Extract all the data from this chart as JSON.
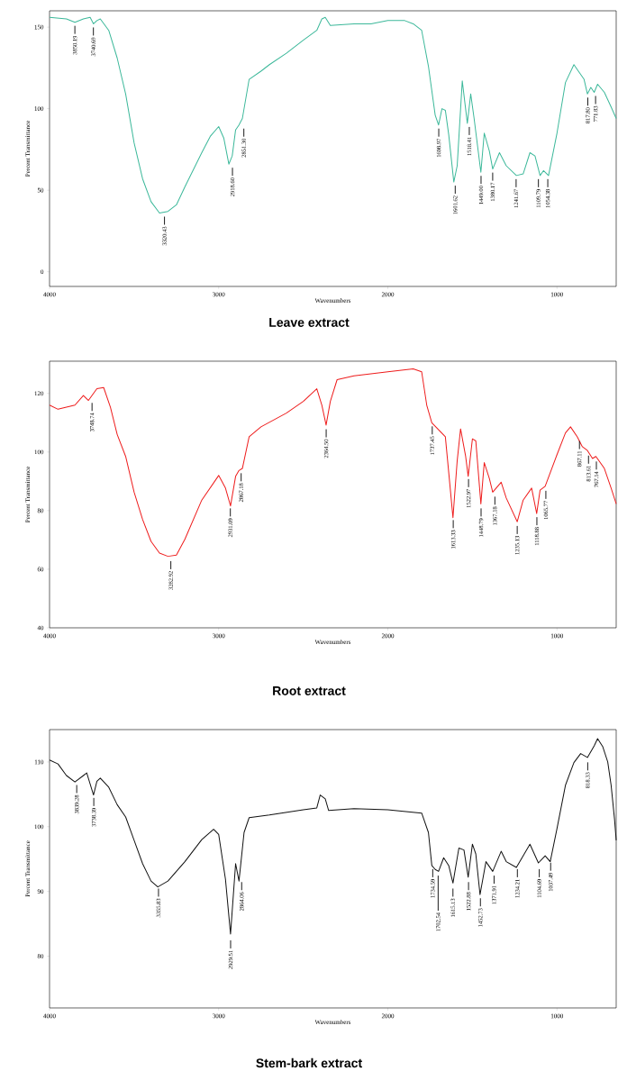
{
  "chart_data": [
    {
      "type": "line",
      "title": "Leave extract",
      "xlabel": "Wavenumbers",
      "ylabel": "Percent Transmittance",
      "color": "#3cb89a",
      "xlim": [
        4000,
        650
      ],
      "ylim": [
        -9,
        160
      ],
      "xticks": [
        4000,
        3000,
        2000,
        1000
      ],
      "yticks": [
        0,
        50,
        100,
        150
      ],
      "x": [
        4000,
        3900,
        3850,
        3800,
        3760,
        3740,
        3720,
        3700,
        3650,
        3600,
        3550,
        3500,
        3450,
        3400,
        3350,
        3300,
        3250,
        3200,
        3100,
        3050,
        3000,
        2970,
        2940,
        2920,
        2900,
        2880,
        2860,
        2820,
        2750,
        2700,
        2600,
        2500,
        2420,
        2390,
        2370,
        2340,
        2200,
        2100,
        2000,
        1900,
        1850,
        1800,
        1760,
        1720,
        1700,
        1680,
        1660,
        1640,
        1610,
        1590,
        1560,
        1530,
        1510,
        1490,
        1450,
        1430,
        1400,
        1380,
        1340,
        1300,
        1240,
        1200,
        1160,
        1130,
        1100,
        1080,
        1050,
        1000,
        950,
        900,
        880,
        840,
        820,
        800,
        780,
        760,
        720,
        680,
        650
      ],
      "values": [
        156,
        155,
        153,
        155,
        156,
        152,
        154,
        155,
        148,
        131,
        109,
        79,
        57,
        43,
        36,
        37,
        41,
        52,
        73,
        83,
        89,
        82,
        66,
        71,
        87,
        90,
        94,
        118,
        123,
        127,
        134,
        142,
        148,
        155,
        156,
        151,
        152,
        152,
        154,
        154,
        152,
        148,
        126,
        96,
        90,
        100,
        99,
        84,
        55,
        65,
        117,
        91,
        109,
        94,
        61,
        85,
        74,
        63,
        73,
        65,
        59,
        60,
        73,
        71,
        59,
        62,
        59,
        85,
        116,
        127,
        124,
        118,
        109,
        113,
        110,
        115,
        110,
        101,
        94
      ],
      "annotations": [
        {
          "text": "3850.19",
          "x": 3850.19,
          "y": 153
        },
        {
          "text": "3740.69",
          "x": 3740.69,
          "y": 152
        },
        {
          "text": "3320.43",
          "x": 3320.43,
          "y": 36
        },
        {
          "text": "2918.60",
          "x": 2918.6,
          "y": 66
        },
        {
          "text": "2851.30",
          "x": 2851.3,
          "y": 90
        },
        {
          "text": "1698.97",
          "x": 1698.97,
          "y": 90
        },
        {
          "text": "1601.62",
          "x": 1601.62,
          "y": 55
        },
        {
          "text": "1518.41",
          "x": 1518.41,
          "y": 91
        },
        {
          "text": "1449.00",
          "x": 1449.0,
          "y": 61
        },
        {
          "text": "1380.17",
          "x": 1380.17,
          "y": 63
        },
        {
          "text": "1241.67",
          "x": 1241.67,
          "y": 59
        },
        {
          "text": "1109.79",
          "x": 1109.79,
          "y": 59
        },
        {
          "text": "1054.38",
          "x": 1054.38,
          "y": 59
        },
        {
          "text": "817.80",
          "x": 817.8,
          "y": 109
        },
        {
          "text": "771.83",
          "x": 771.83,
          "y": 110
        }
      ]
    },
    {
      "type": "line",
      "title": "Root extract",
      "xlabel": "Wavenumbers",
      "ylabel": "Percent Transmittance",
      "color": "#ee1c1c",
      "xlim": [
        4000,
        650
      ],
      "ylim": [
        40,
        131
      ],
      "xticks": [
        4000,
        3000,
        2000,
        1000
      ],
      "yticks": [
        40,
        60,
        80,
        100,
        120
      ],
      "x": [
        4000,
        3950,
        3900,
        3850,
        3800,
        3770,
        3720,
        3680,
        3640,
        3600,
        3550,
        3500,
        3450,
        3400,
        3350,
        3300,
        3250,
        3200,
        3100,
        3000,
        2960,
        2930,
        2900,
        2880,
        2860,
        2820,
        2750,
        2600,
        2500,
        2420,
        2390,
        2365,
        2340,
        2300,
        2200,
        2000,
        1850,
        1800,
        1770,
        1740,
        1700,
        1660,
        1640,
        1615,
        1590,
        1570,
        1540,
        1525,
        1500,
        1480,
        1450,
        1430,
        1400,
        1380,
        1330,
        1300,
        1235,
        1200,
        1150,
        1120,
        1100,
        1070,
        1000,
        950,
        920,
        880,
        850,
        820,
        790,
        770,
        720,
        680,
        650
      ],
      "values": [
        116,
        114.6,
        115.3,
        116,
        119.3,
        117.6,
        121.6,
        122,
        115.3,
        106,
        98.5,
        86.3,
        77,
        69.5,
        65.5,
        64.4,
        64.8,
        70.2,
        83.6,
        92,
        87.7,
        81.6,
        91.7,
        93.7,
        94.4,
        105.2,
        108.6,
        113.3,
        117.3,
        121.6,
        116,
        109.2,
        117.3,
        124.7,
        126,
        127.4,
        128.4,
        127.4,
        116,
        110,
        107.6,
        105.2,
        93,
        77.6,
        97,
        107.9,
        98.5,
        91.7,
        104.5,
        103.8,
        82.3,
        96.4,
        91,
        86.3,
        89.7,
        84.3,
        76.2,
        83.6,
        87.7,
        79,
        87,
        88.3,
        99.1,
        106.5,
        108.6,
        105.2,
        101.8,
        100.5,
        97.8,
        98.5,
        94.4,
        87.7,
        82.3
      ],
      "annotations": [
        {
          "text": "3748.74",
          "x": 3748.74,
          "y": 118
        },
        {
          "text": "3282.92",
          "x": 3282.92,
          "y": 64
        },
        {
          "text": "2931.09",
          "x": 2931.09,
          "y": 82
        },
        {
          "text": "2867.18",
          "x": 2867.18,
          "y": 94
        },
        {
          "text": "2364.50",
          "x": 2364.5,
          "y": 109
        },
        {
          "text": "1737.45",
          "x": 1737.45,
          "y": 110
        },
        {
          "text": "1613.33",
          "x": 1613.33,
          "y": 78
        },
        {
          "text": "1522.97",
          "x": 1522.97,
          "y": 92
        },
        {
          "text": "1448.79",
          "x": 1448.79,
          "y": 82
        },
        {
          "text": "1367.18",
          "x": 1367.18,
          "y": 86
        },
        {
          "text": "1235.13",
          "x": 1235.13,
          "y": 76
        },
        {
          "text": "1118.88",
          "x": 1118.88,
          "y": 79
        },
        {
          "text": "1065.77",
          "x": 1065.77,
          "y": 88
        },
        {
          "text": "867.11",
          "x": 867.11,
          "y": 105
        },
        {
          "text": "813.61",
          "x": 813.61,
          "y": 100
        },
        {
          "text": "767.14",
          "x": 767.14,
          "y": 98
        }
      ]
    },
    {
      "type": "line",
      "title": "Stem-bark extract",
      "xlabel": "Wavenumbers",
      "ylabel": "Percent Transmittance",
      "color": "#111111",
      "xlim": [
        4000,
        650
      ],
      "ylim": [
        72,
        115
      ],
      "xticks": [
        4000,
        3000,
        2000,
        1000
      ],
      "yticks": [
        80,
        90,
        100,
        110
      ],
      "x": [
        4000,
        3950,
        3900,
        3850,
        3800,
        3780,
        3740,
        3720,
        3700,
        3650,
        3600,
        3550,
        3500,
        3450,
        3400,
        3360,
        3300,
        3200,
        3100,
        3030,
        3000,
        2960,
        2930,
        2900,
        2880,
        2850,
        2820,
        2700,
        2500,
        2420,
        2400,
        2370,
        2350,
        2200,
        2000,
        1800,
        1760,
        1740,
        1720,
        1700,
        1670,
        1640,
        1615,
        1580,
        1550,
        1525,
        1500,
        1480,
        1455,
        1420,
        1380,
        1330,
        1300,
        1240,
        1160,
        1110,
        1070,
        1040,
        1000,
        950,
        900,
        860,
        820,
        780,
        760,
        730,
        700,
        680,
        660,
        650
      ],
      "values": [
        110.3,
        109.7,
        107.9,
        106.9,
        107.9,
        108.3,
        104.9,
        107,
        107.5,
        106.1,
        103.4,
        101.5,
        97.9,
        94.3,
        91.6,
        90.7,
        91.6,
        94.6,
        98,
        99.6,
        98.8,
        91.9,
        83.4,
        94.3,
        91.6,
        99.1,
        101.4,
        101.8,
        102.6,
        102.9,
        104.9,
        104.3,
        102.5,
        102.8,
        102.6,
        102.1,
        99.1,
        94,
        93.4,
        93.1,
        95.2,
        94,
        91.3,
        96.7,
        96.4,
        92.2,
        97.3,
        95.8,
        89.5,
        94.6,
        93.1,
        96.2,
        94.6,
        93.7,
        97.3,
        94.4,
        95.5,
        94.6,
        99.7,
        106.4,
        109.9,
        111.3,
        110.7,
        112.5,
        113.6,
        112.4,
        110,
        106.4,
        101.2,
        97.9
      ],
      "annotations": [
        {
          "text": "3839.28",
          "x": 3839.28,
          "y": 107
        },
        {
          "text": "3738.39",
          "x": 3738.39,
          "y": 105
        },
        {
          "text": "3355.83",
          "x": 3355.83,
          "y": 91
        },
        {
          "text": "2929.51",
          "x": 2929.51,
          "y": 83
        },
        {
          "text": "2864.06",
          "x": 2864.06,
          "y": 92
        },
        {
          "text": "1734.59",
          "x": 1734.59,
          "y": 94
        },
        {
          "text": "1702.54",
          "x": 1702.54,
          "y": 93
        },
        {
          "text": "1615.13",
          "x": 1615.13,
          "y": 91
        },
        {
          "text": "1522.88",
          "x": 1522.88,
          "y": 92
        },
        {
          "text": "1452.73",
          "x": 1452.73,
          "y": 89.5
        },
        {
          "text": "1371.91",
          "x": 1371.91,
          "y": 93
        },
        {
          "text": "1234.21",
          "x": 1234.21,
          "y": 94
        },
        {
          "text": "1104.69",
          "x": 1104.69,
          "y": 94
        },
        {
          "text": "1037.49",
          "x": 1037.49,
          "y": 95
        },
        {
          "text": "818.33",
          "x": 818.33,
          "y": 110.5
        }
      ]
    }
  ]
}
